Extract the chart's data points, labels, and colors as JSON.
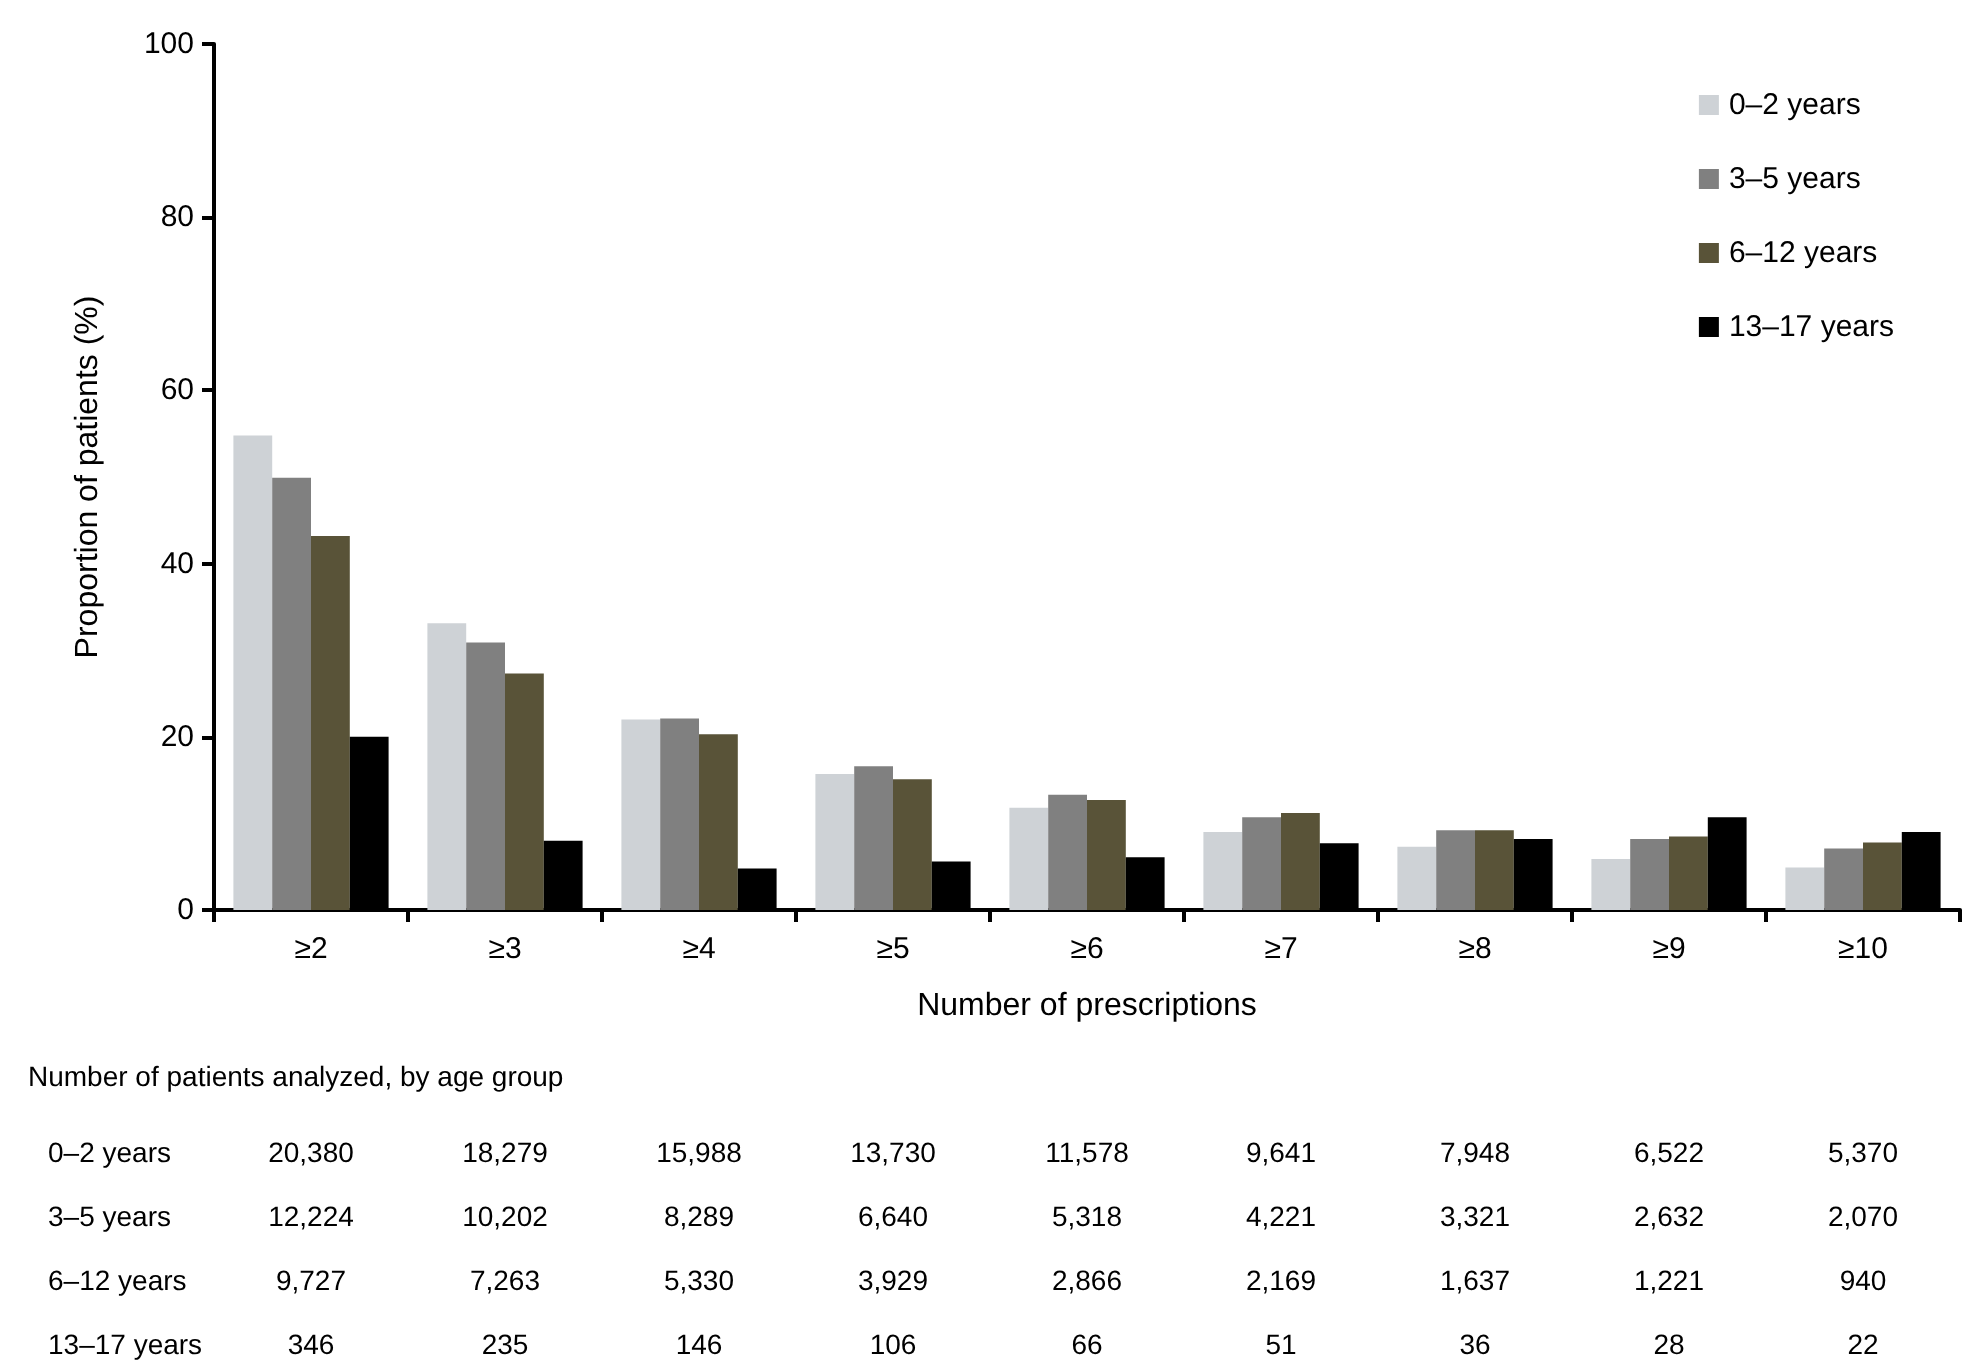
{
  "chart_data": [
    {
      "type": "bar",
      "xlabel": "Number of prescriptions",
      "ylabel": "Proportion of patients (%)",
      "categories": [
        "≥2",
        "≥3",
        "≥4",
        "≥5",
        "≥6",
        "≥7",
        "≥8",
        "≥9",
        "≥10"
      ],
      "series": [
        {
          "name": "0–2 years",
          "color": "#ced2d6",
          "values": [
            54.8,
            33.1,
            22.0,
            15.7,
            11.8,
            9.0,
            7.3,
            5.9,
            4.9
          ]
        },
        {
          "name": "3–5 years",
          "color": "#808080",
          "values": [
            49.9,
            30.9,
            22.1,
            16.6,
            13.3,
            10.7,
            9.2,
            8.2,
            7.1
          ]
        },
        {
          "name": "6–12 years",
          "color": "#595338",
          "values": [
            43.2,
            27.3,
            20.3,
            15.1,
            12.7,
            11.2,
            9.2,
            8.5,
            7.8
          ]
        },
        {
          "name": "13–17 years",
          "color": "#000000",
          "values": [
            20.0,
            8.0,
            4.8,
            5.6,
            6.1,
            7.7,
            8.2,
            10.7,
            9.0
          ]
        }
      ],
      "ylim": [
        0,
        100
      ],
      "yticks": [
        0,
        20,
        40,
        60,
        80,
        100
      ],
      "grid": false,
      "legend": "top right"
    },
    {
      "type": "other",
      "title": "Number of patients analyzed, by age group",
      "y_categories": [
        "0–2 years",
        "3–5 years",
        "6–12 years",
        "13–17 years"
      ],
      "cell_labels": [
        [
          "20,380",
          "18,279",
          "15,988",
          "13,730",
          "11,578",
          "9,641",
          "7,948",
          "6,522",
          "5,370"
        ],
        [
          "12,224",
          "10,202",
          "8,289",
          "6,640",
          "5,318",
          "4,221",
          "3,321",
          "2,632",
          "2,070"
        ],
        [
          "9,727",
          "7,263",
          "5,330",
          "3,929",
          "2,866",
          "2,169",
          "1,637",
          "1,221",
          "940"
        ],
        [
          "346",
          "235",
          "146",
          "106",
          "66",
          "51",
          "36",
          "28",
          "22"
        ]
      ]
    }
  ]
}
